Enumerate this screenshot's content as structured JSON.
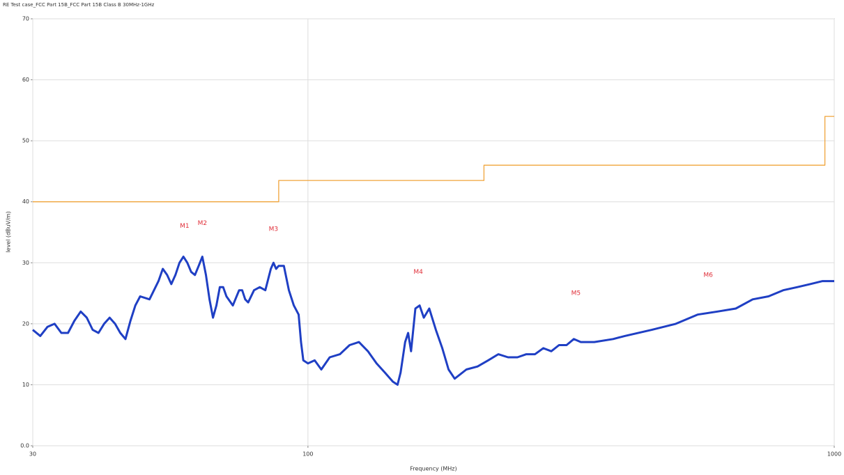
{
  "chart_data": {
    "type": "line",
    "title": "RE Test case_FCC Part 15B_FCC Part 15B  Class B 30MHz-1GHz",
    "x_label": "Frequency (MHz)",
    "y_label": "level (dBuV/m)",
    "xscale": "log",
    "xlim": [
      30,
      1000
    ],
    "xticks": [
      30,
      100,
      1000
    ],
    "ylim": [
      0,
      70
    ],
    "yticks": [
      {
        "value": 0,
        "label": "0.0"
      },
      10,
      20,
      30,
      40,
      50,
      60,
      70
    ],
    "grid": true,
    "series": [
      {
        "color": "#1f3fc4",
        "x": [
          30,
          31,
          32,
          33,
          34,
          35,
          36,
          37,
          38,
          39,
          40,
          41,
          42,
          43,
          44,
          45,
          46,
          47,
          48,
          50,
          52,
          53,
          54,
          55,
          56,
          57,
          58,
          59,
          60,
          61,
          62,
          63,
          64,
          65,
          66,
          67,
          68,
          69,
          70,
          72,
          74,
          75,
          76,
          77,
          79,
          81,
          83,
          85,
          86,
          87,
          88,
          90,
          92,
          94,
          96,
          97,
          98,
          100,
          103,
          106,
          110,
          115,
          120,
          125,
          130,
          135,
          140,
          145,
          148,
          150,
          153,
          155,
          157,
          160,
          163,
          166,
          170,
          175,
          180,
          185,
          190,
          200,
          210,
          220,
          230,
          240,
          250,
          260,
          270,
          280,
          290,
          300,
          310,
          320,
          330,
          350,
          380,
          400,
          450,
          500,
          550,
          600,
          650,
          700,
          750,
          800,
          850,
          900,
          950,
          1000
        ],
        "values": [
          19,
          18,
          19.5,
          20,
          18.5,
          18.5,
          20.5,
          22,
          21,
          19,
          18.5,
          20,
          21,
          20,
          18.5,
          17.5,
          20.5,
          23,
          24.5,
          24,
          27,
          29,
          28,
          26.5,
          28,
          30,
          31,
          30,
          28.5,
          28,
          29.5,
          31,
          28,
          24,
          21,
          23,
          26,
          26,
          24.5,
          23,
          25.5,
          25.5,
          24,
          23.5,
          25.5,
          26,
          25.5,
          29,
          30,
          29,
          29.5,
          29.5,
          25.5,
          23,
          21.5,
          17,
          14,
          13.5,
          14,
          12.5,
          14.5,
          15,
          16.5,
          17,
          15.5,
          13.5,
          12,
          10.5,
          10,
          12,
          17,
          18.5,
          15.5,
          22.5,
          23,
          21,
          22.5,
          19,
          16,
          12.5,
          11,
          12.5,
          13,
          14,
          15,
          14.5,
          14.5,
          15,
          15,
          16,
          15.5,
          16.5,
          16.5,
          17.5,
          17,
          17,
          17.5,
          18,
          19,
          20,
          21.5,
          22,
          22.5,
          24,
          24.5,
          25.5,
          26,
          26.5,
          27,
          27
        ]
      },
      {
        "color": "#f0a43a",
        "x": [
          30,
          88,
          88,
          216,
          216,
          960,
          960,
          1000
        ],
        "values": [
          40,
          40,
          43.5,
          43.5,
          46,
          46,
          54,
          54
        ]
      }
    ],
    "marker_color": "#e0303a",
    "markers": [
      {
        "label": "M1",
        "x": 58.3,
        "y": 36
      },
      {
        "label": "M2",
        "x": 63,
        "y": 36.5
      },
      {
        "label": "M3",
        "x": 86,
        "y": 35.5
      },
      {
        "label": "M4",
        "x": 162,
        "y": 28.5
      },
      {
        "label": "M5",
        "x": 323,
        "y": 25
      },
      {
        "label": "M6",
        "x": 576,
        "y": 28
      }
    ]
  }
}
